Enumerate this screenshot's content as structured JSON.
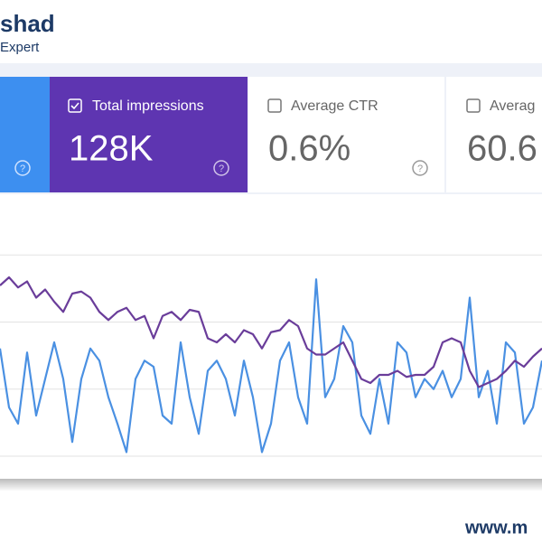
{
  "header": {
    "logo_name": "shad",
    "logo_tagline": "Expert"
  },
  "metrics": [
    {
      "label": "Total impressions",
      "value": "128K"
    },
    {
      "label": "Average CTR",
      "value": "0.6%"
    },
    {
      "label": "Averag",
      "value": "60.6"
    }
  ],
  "chart_data": {
    "type": "line",
    "categories": [
      null,
      null,
      null,
      null,
      null,
      null,
      null,
      null,
      null,
      null,
      null,
      null,
      null,
      null,
      null,
      null,
      null,
      null,
      null,
      null,
      null,
      null,
      null,
      null,
      null,
      null,
      null,
      null,
      null,
      null,
      null,
      null,
      null,
      null,
      null,
      null,
      null,
      null,
      null,
      null,
      null,
      null,
      null,
      null,
      null,
      null,
      null,
      null,
      null,
      null,
      null,
      null,
      null,
      null,
      null,
      null,
      null,
      null,
      null,
      null,
      null
    ],
    "series": [
      {
        "color": "#4a90e2",
        "values": [
          53,
          24,
          16,
          51,
          20,
          38,
          56,
          38,
          7,
          38,
          53,
          47,
          29,
          16,
          2,
          38,
          47,
          44,
          20,
          16,
          56,
          29,
          11,
          42,
          47,
          38,
          20,
          47,
          29,
          2,
          16,
          47,
          56,
          29,
          16,
          87,
          29,
          38,
          64,
          56,
          20,
          11,
          38,
          16,
          56,
          51,
          29,
          38,
          33,
          42,
          29,
          38,
          78,
          29,
          42,
          16,
          56,
          51,
          16,
          24,
          47
        ]
      },
      {
        "color": "#6a3d9a",
        "values": [
          84,
          88,
          83,
          86,
          78,
          82,
          76,
          71,
          80,
          81,
          78,
          71,
          67,
          71,
          73,
          67,
          69,
          58,
          69,
          71,
          67,
          72,
          71,
          58,
          56,
          60,
          56,
          62,
          60,
          53,
          61,
          62,
          67,
          64,
          53,
          50,
          50,
          53,
          56,
          47,
          38,
          36,
          40,
          40,
          42,
          39,
          40,
          40,
          44,
          56,
          58,
          56,
          42,
          34,
          36,
          38,
          42,
          47,
          44,
          49,
          53
        ]
      }
    ],
    "ylim": [
      0,
      100
    ],
    "yticks": [
      0,
      33,
      66,
      99
    ],
    "grid": true
  },
  "footer": {
    "url": "www.m"
  }
}
